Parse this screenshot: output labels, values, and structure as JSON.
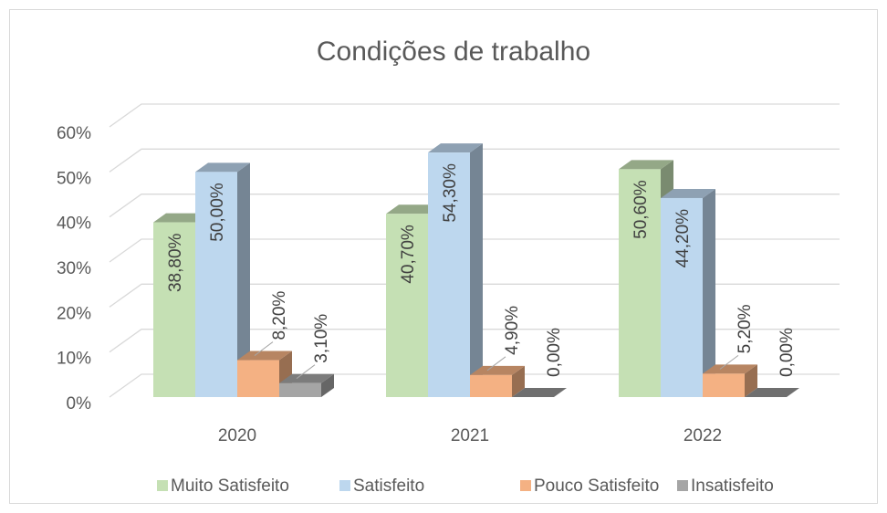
{
  "chart_data": {
    "type": "bar3d",
    "title": "Condições de trabalho",
    "categories": [
      "2020",
      "2021",
      "2022"
    ],
    "series": [
      {
        "name": "Muito Satisfeito",
        "color": "#c5e0b4",
        "values": [
          38.8,
          40.7,
          50.6
        ],
        "value_labels": [
          "38,80%",
          "40,70%",
          "50,60%"
        ]
      },
      {
        "name": "Satisfeito",
        "color": "#bdd7ee",
        "values": [
          50.0,
          54.3,
          44.2
        ],
        "value_labels": [
          "50,00%",
          "54,30%",
          "44,20%"
        ]
      },
      {
        "name": "Pouco Satisfeito",
        "color": "#f4b183",
        "values": [
          8.2,
          4.9,
          5.2
        ],
        "value_labels": [
          "8,20%",
          "4,90%",
          "5,20%"
        ]
      },
      {
        "name": "Insatisfeito",
        "color": "#a5a5a5",
        "values": [
          3.1,
          0.0,
          0.0
        ],
        "value_labels": [
          "3,10%",
          "0,00%",
          "0,00%"
        ]
      }
    ],
    "ylim": [
      0,
      60
    ],
    "yticks": [
      {
        "value": 0,
        "label": "0%"
      },
      {
        "value": 10,
        "label": "10%"
      },
      {
        "value": 20,
        "label": "20%"
      },
      {
        "value": 30,
        "label": "30%"
      },
      {
        "value": 40,
        "label": "40%"
      },
      {
        "value": 50,
        "label": "50%"
      },
      {
        "value": 60,
        "label": "60%"
      }
    ],
    "grid": true,
    "legend": "bottom"
  }
}
